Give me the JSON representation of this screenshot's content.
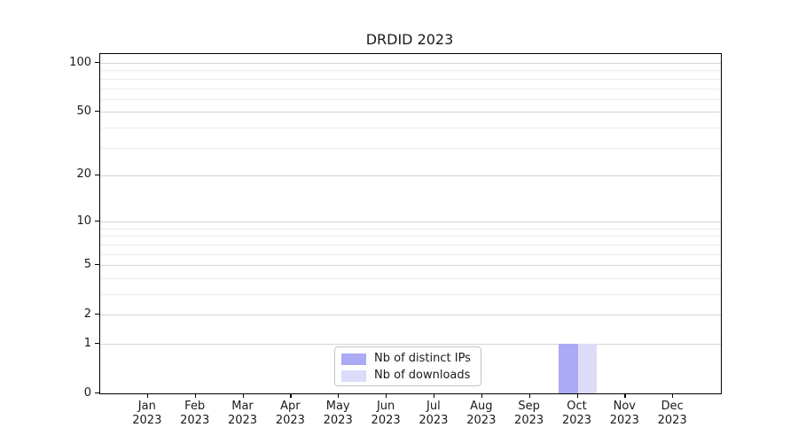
{
  "title": "DRDID 2023",
  "colors": {
    "distinct_ips": "#abaaf5",
    "downloads": "#dcdcf8",
    "grid_major": "#d4d4d4",
    "grid_minor": "#ececec",
    "spine": "#000000",
    "legend_border": "#c4c4c4"
  },
  "chart_data": {
    "type": "bar",
    "title": "DRDID 2023",
    "categories": [
      "Jan",
      "Feb",
      "Mar",
      "Apr",
      "May",
      "Jun",
      "Jul",
      "Aug",
      "Sep",
      "Oct",
      "Nov",
      "Dec"
    ],
    "year_label": "2023",
    "series": [
      {
        "name": "Nb of distinct IPs",
        "color": "#abaaf5",
        "values": [
          0,
          0,
          0,
          0,
          0,
          0,
          0,
          0,
          0,
          1,
          0,
          0
        ]
      },
      {
        "name": "Nb of downloads",
        "color": "#dcdcf8",
        "values": [
          0,
          0,
          0,
          0,
          0,
          0,
          0,
          0,
          0,
          1,
          0,
          0
        ]
      }
    ],
    "xlabel": "",
    "ylabel": "",
    "y_scale": "log1p",
    "ylim": [
      0,
      100
    ],
    "y_ticks": [
      0,
      1,
      2,
      5,
      10,
      20,
      50,
      100
    ],
    "y_minor_ticks": [
      3,
      4,
      6,
      7,
      8,
      9,
      30,
      40,
      60,
      70,
      80,
      90
    ],
    "grid": true,
    "legend_position": "lower center"
  }
}
